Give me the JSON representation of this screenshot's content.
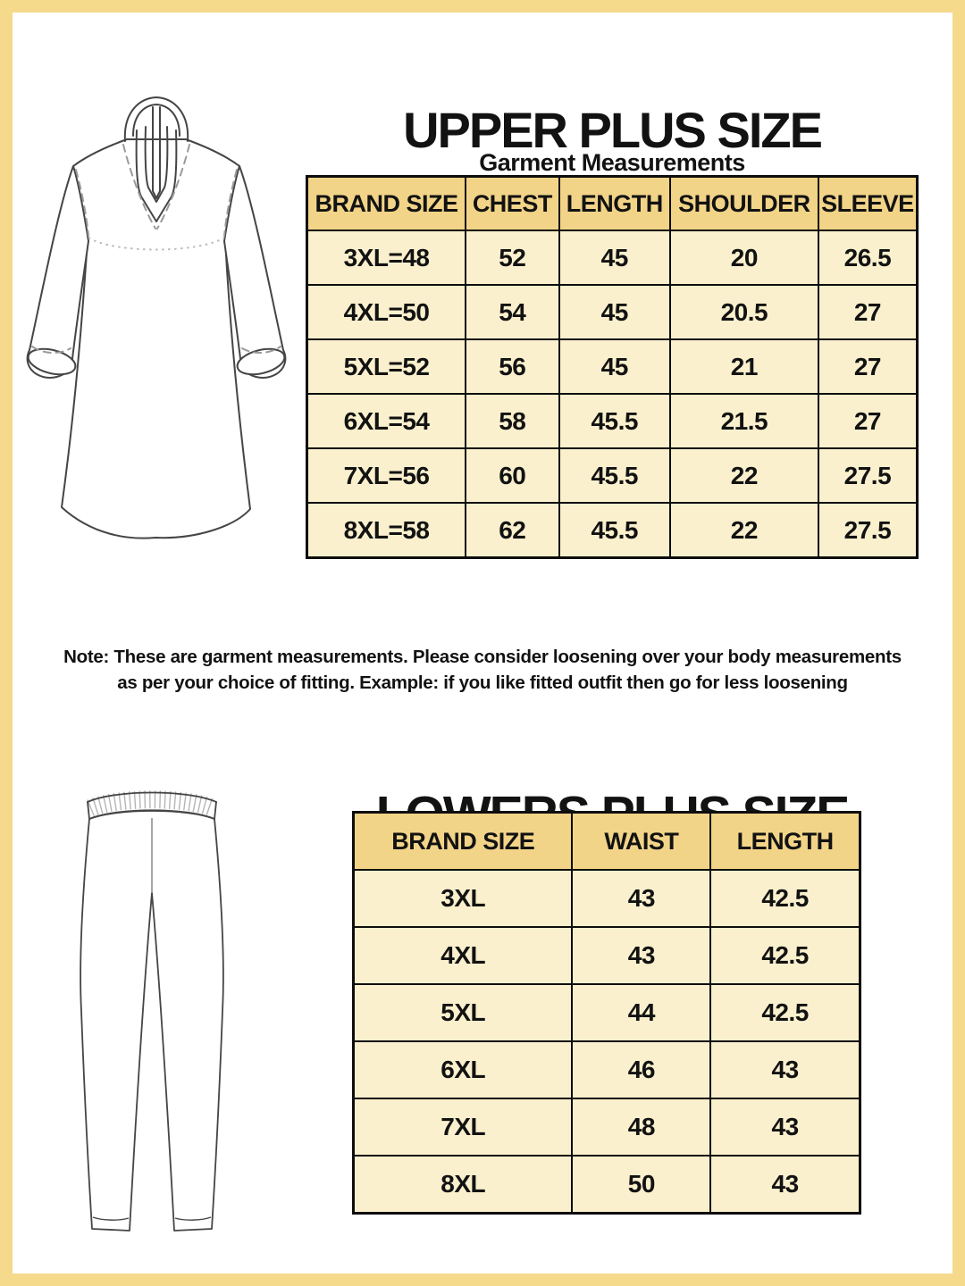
{
  "page": {
    "frame_color": "#F5DA8C",
    "background_color": "#FFFFFF"
  },
  "colors": {
    "table_header_fill": "#F2D488",
    "table_row_fill": "#FAF0CD",
    "table_border": "#0D0D0D",
    "text": "#121212"
  },
  "upper_section": {
    "title": "UPPER PLUS SIZE",
    "subtitle": "Garment Measurements",
    "illustration": "kurta-line-drawing",
    "table": {
      "headers": [
        "BRAND SIZE",
        "CHEST",
        "LENGTH",
        "SHOULDER",
        "SLEEVE"
      ],
      "rows": [
        [
          "3XL=48",
          "52",
          "45",
          "20",
          "26.5"
        ],
        [
          "4XL=50",
          "54",
          "45",
          "20.5",
          "27"
        ],
        [
          "5XL=52",
          "56",
          "45",
          "21",
          "27"
        ],
        [
          "6XL=54",
          "58",
          "45.5",
          "21.5",
          "27"
        ],
        [
          "7XL=56",
          "60",
          "45.5",
          "22",
          "27.5"
        ],
        [
          "8XL=58",
          "62",
          "45.5",
          "22",
          "27.5"
        ]
      ]
    },
    "note_line1": "Note: These are garment measurements. Please consider loosening over your body measurements",
    "note_line2": "as per your choice of fitting. Example: if you like fitted outfit then go for less loosening"
  },
  "lower_section": {
    "title": "LOWERS PLUS SIZE",
    "illustration": "pants-line-drawing",
    "table": {
      "headers": [
        "BRAND SIZE",
        "WAIST",
        "LENGTH"
      ],
      "rows": [
        [
          "3XL",
          "43",
          "42.5"
        ],
        [
          "4XL",
          "43",
          "42.5"
        ],
        [
          "5XL",
          "44",
          "42.5"
        ],
        [
          "6XL",
          "46",
          "43"
        ],
        [
          "7XL",
          "48",
          "43"
        ],
        [
          "8XL",
          "50",
          "43"
        ]
      ]
    }
  }
}
